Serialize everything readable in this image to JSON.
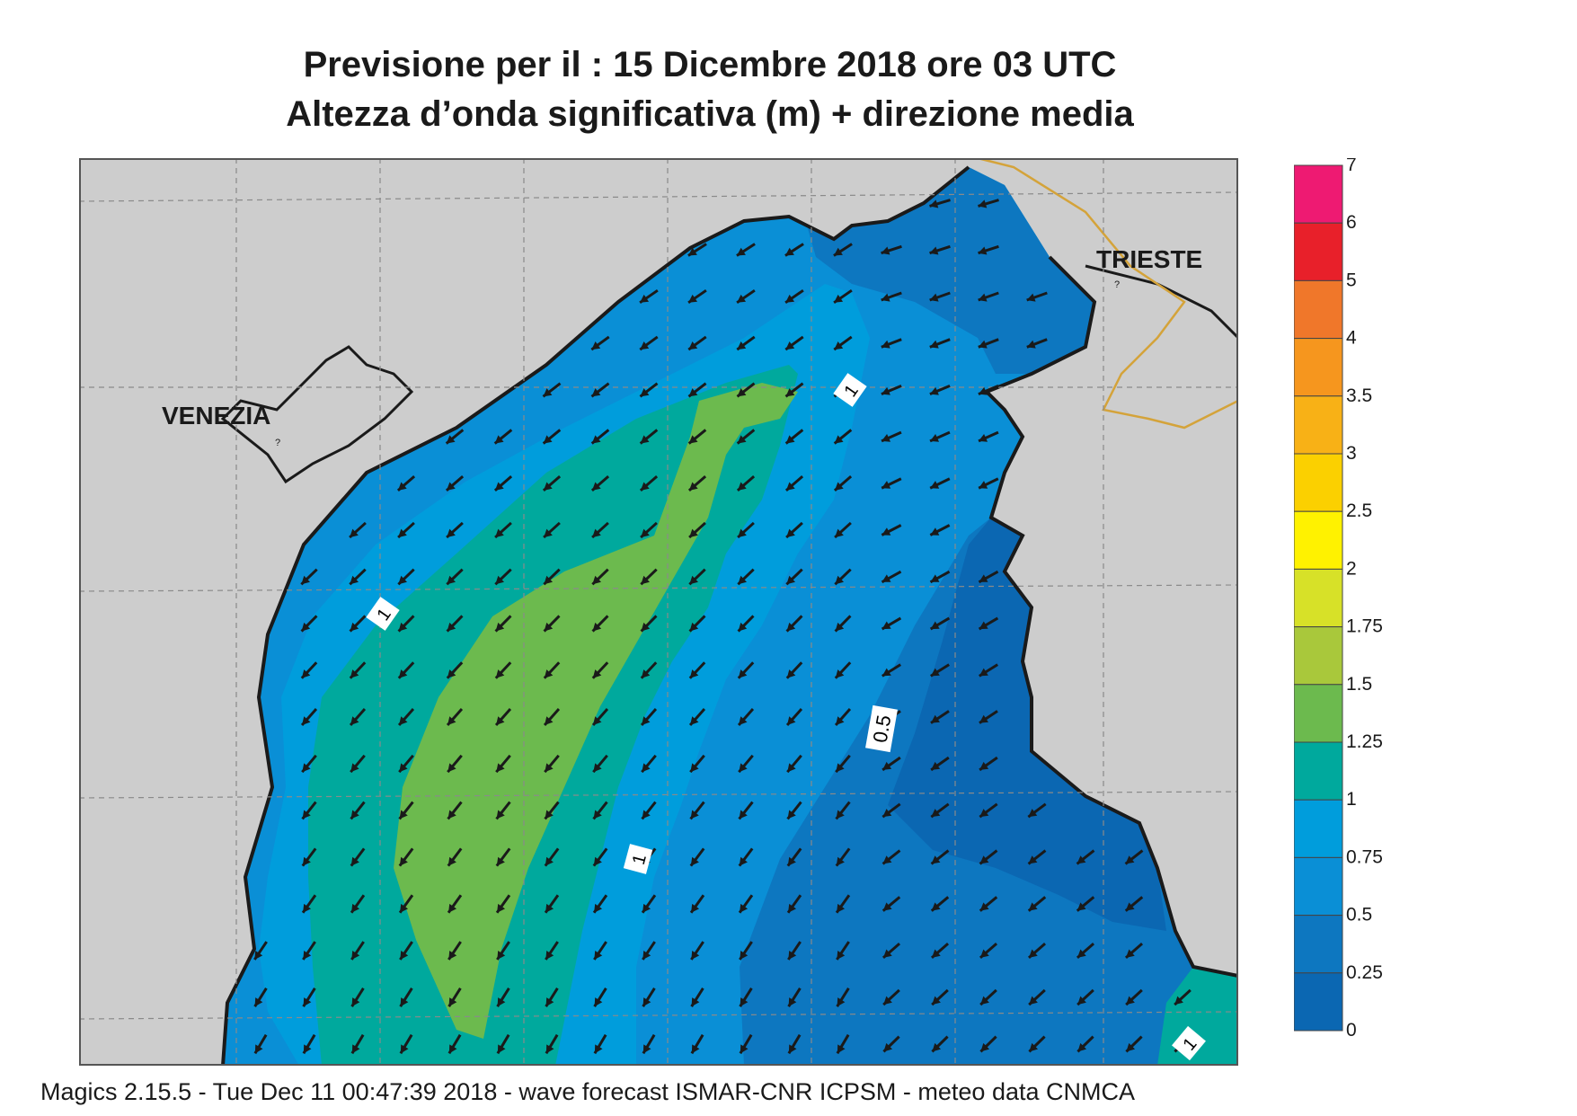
{
  "title_line1": "Previsione per il  :  15 Dicembre  2018   ore 03 UTC",
  "title_line2": "Altezza d’onda significativa (m) + direzione media",
  "footer": "Magics 2.15.5 - Tue Dec 11 00:47:39 2018 - wave forecast  ISMAR-CNR  ICPSM - meteo data   CNMCA",
  "cities": [
    {
      "name": "VENEZIA",
      "symbol": "?"
    },
    {
      "name": "TRIESTE",
      "symbol": "?"
    }
  ],
  "contour_labels": [
    "1",
    "1",
    "0.5",
    "1",
    "1"
  ],
  "legend": {
    "values": [
      "7",
      "6",
      "5",
      "4",
      "3.5",
      "3",
      "2.5",
      "2",
      "1.75",
      "1.5",
      "1.25",
      "1",
      "0.75",
      "0.5",
      "0.25",
      "0"
    ],
    "colors": [
      "#ee1a72",
      "#e8202a",
      "#f0772a",
      "#f6961e",
      "#f8b116",
      "#fbd000",
      "#fff200",
      "#d7e128",
      "#a9c83b",
      "#6cba4e",
      "#00a99d",
      "#009ddc",
      "#0a8fd6",
      "#0d77c0",
      "#0b67b2"
    ]
  },
  "colors": {
    "land": "#cdcdcd",
    "border": "#d4a33a",
    "sea_025": "#0b67b2",
    "sea_05": "#0d77c0",
    "sea_075": "#0a8fd6",
    "sea_1": "#009ddc",
    "sea_125": "#00a99d",
    "sea_15": "#6cba4e"
  },
  "wave_direction": "south-west"
}
